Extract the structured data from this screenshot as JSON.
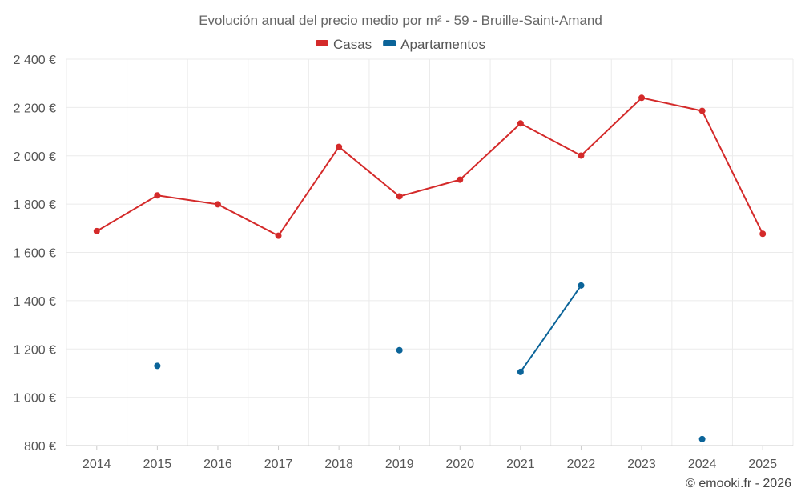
{
  "chart_data": {
    "type": "line",
    "title": "Evolución anual del precio medio por m² - 59 - Bruille-Saint-Amand",
    "categories": [
      "2014",
      "2015",
      "2016",
      "2017",
      "2018",
      "2019",
      "2020",
      "2021",
      "2022",
      "2023",
      "2024",
      "2025"
    ],
    "series": [
      {
        "name": "Casas",
        "color": "#d42a2a",
        "values": [
          1688,
          1836,
          1799,
          1669,
          2037,
          1832,
          1901,
          2134,
          2001,
          2240,
          2186,
          1677
        ]
      },
      {
        "name": "Apartamentos",
        "color": "#0b6499",
        "values": [
          null,
          1130,
          null,
          null,
          null,
          1195,
          null,
          1105,
          1463,
          null,
          827,
          null
        ]
      }
    ],
    "ylim": [
      800,
      2400
    ],
    "yticks": [
      800,
      1000,
      1200,
      1400,
      1600,
      1800,
      2000,
      2200,
      2400
    ],
    "ytick_labels": [
      "800 €",
      "1 000 €",
      "1 200 €",
      "1 400 €",
      "1 600 €",
      "1 800 €",
      "2 000 €",
      "2 200 €",
      "2 400 €"
    ],
    "xlabel": "",
    "ylabel": "",
    "grid": true,
    "legend_position": "top-center"
  },
  "credit": "© emooki.fr - 2026"
}
